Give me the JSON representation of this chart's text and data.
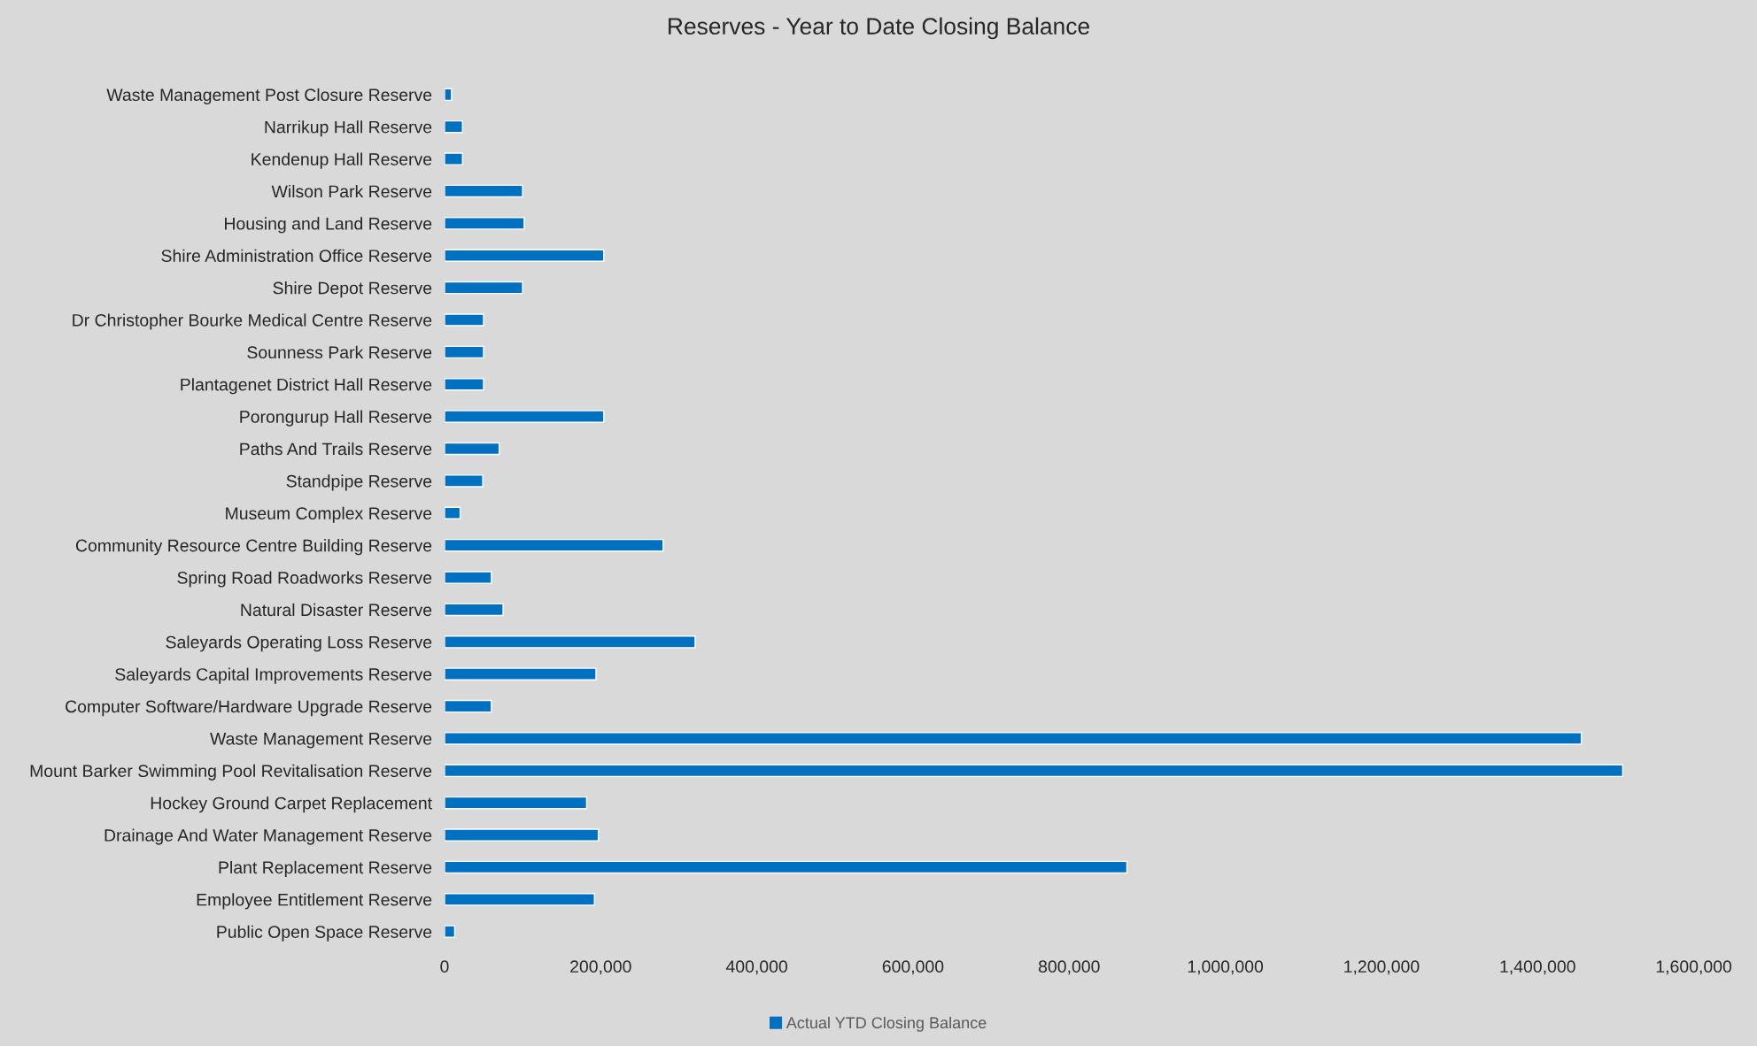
{
  "chart_data": {
    "type": "bar",
    "orientation": "horizontal",
    "title": "Reserves - Year to Date Closing Balance",
    "categories": [
      "Waste Management Post Closure Reserve",
      "Narrikup Hall Reserve",
      "Kendenup Hall Reserve",
      "Wilson Park Reserve",
      "Housing and Land Reserve",
      "Shire Administration Office Reserve",
      "Shire Depot Reserve",
      "Dr Christopher Bourke Medical Centre Reserve",
      "Sounness Park Reserve",
      "Plantagenet District Hall Reserve",
      "Porongurup Hall Reserve",
      "Paths And Trails Reserve",
      "Standpipe Reserve",
      "Museum Complex Reserve",
      "Community Resource Centre Building Reserve",
      "Spring Road Roadworks Reserve",
      "Natural Disaster Reserve",
      "Saleyards Operating Loss Reserve",
      "Saleyards Capital Improvements Reserve",
      "Computer Software/Hardware Upgrade Reserve",
      "Waste Management Reserve",
      "Mount Barker Swimming Pool Revitalisation Reserve",
      "Hockey Ground Carpet Replacement",
      "Drainage And Water Management Reserve",
      "Plant Replacement Reserve",
      "Employee Entitlement Reserve",
      "Public Open Space Reserve"
    ],
    "series": [
      {
        "name": "Actual YTD Closing Balance",
        "color": "#0070c0",
        "values": [
          9000,
          23000,
          23000,
          100000,
          102000,
          204000,
          100000,
          50000,
          50000,
          50000,
          204000,
          70000,
          49000,
          20000,
          280000,
          60000,
          75000,
          321000,
          194000,
          60000,
          1456000,
          1509000,
          182000,
          197000,
          874000,
          192000,
          13000
        ]
      }
    ],
    "xlim": [
      0,
      1600000
    ],
    "xticks": [
      0,
      {
        "value": 200000,
        "label": "200,000"
      },
      {
        "value": 400000,
        "label": "400,000"
      },
      {
        "value": 600000,
        "label": "600,000"
      },
      {
        "value": 800000,
        "label": "800,000"
      },
      {
        "value": 1000000,
        "label": "1,000,000"
      },
      {
        "value": 1200000,
        "label": "1,200,000"
      },
      {
        "value": 1400000,
        "label": "1,400,000"
      },
      {
        "value": 1600000,
        "label": "1,600,000"
      }
    ],
    "grid": false,
    "legend": "bottom"
  }
}
